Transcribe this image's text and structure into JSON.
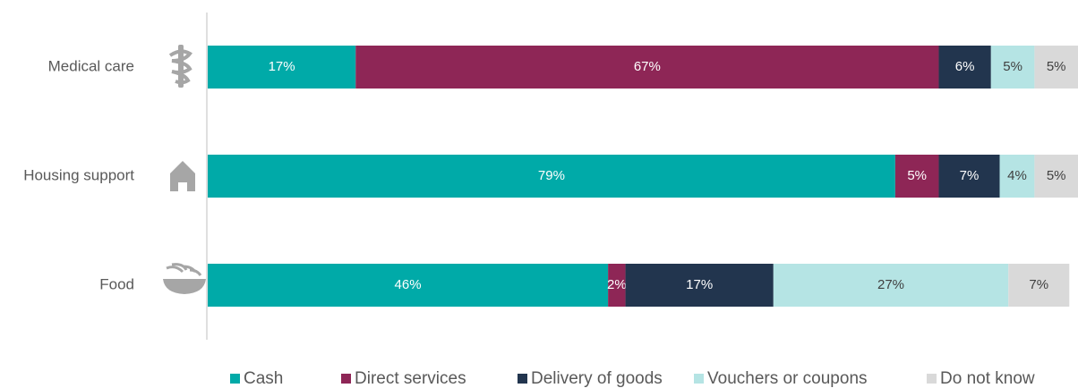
{
  "chart_data": {
    "type": "stacked_bar_horizontal",
    "categories": [
      "Medical care",
      "Housing support",
      "Food"
    ],
    "series": [
      {
        "name": "Cash",
        "color": "#00aaa8",
        "values": [
          17,
          79,
          46
        ],
        "value_labels": [
          "17%",
          "79%",
          "46%"
        ]
      },
      {
        "name": "Direct services",
        "color": "#8e2656",
        "values": [
          67,
          5,
          2
        ],
        "value_labels": [
          "67%",
          "5%",
          "2%"
        ]
      },
      {
        "name": "Delivery of goods",
        "color": "#22354e",
        "values": [
          6,
          7,
          17
        ],
        "value_labels": [
          "6%",
          "7%",
          "17%"
        ]
      },
      {
        "name": "Vouchers or coupons",
        "color": "#b5e4e4",
        "values": [
          5,
          4,
          27
        ],
        "value_labels": [
          "5%",
          "4%",
          "27%"
        ]
      },
      {
        "name": "Do not know",
        "color": "#d9d9d9",
        "values": [
          5,
          5,
          7
        ],
        "value_labels": [
          "5%",
          "5%",
          "7%"
        ]
      }
    ],
    "xlim": [
      0,
      100
    ],
    "legend": "bottom"
  }
}
